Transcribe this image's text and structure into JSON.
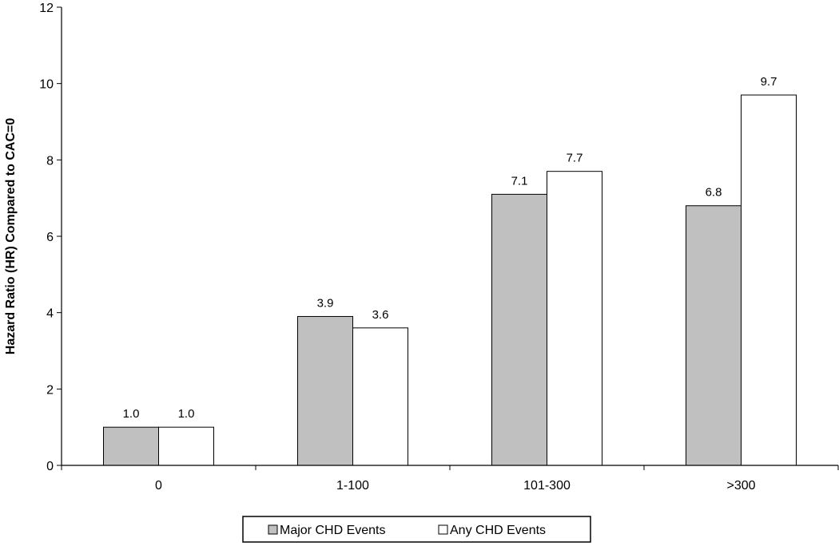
{
  "chart_data": {
    "type": "bar",
    "categories": [
      "0",
      "1-100",
      "101-300",
      ">300"
    ],
    "series": [
      {
        "name": "Major CHD Events",
        "values": [
          1.0,
          3.9,
          7.1,
          6.8
        ],
        "labels": [
          "1.0",
          "3.9",
          "7.1",
          "6.8"
        ],
        "color": "#c0c0c0"
      },
      {
        "name": "Any CHD Events",
        "values": [
          1.0,
          3.6,
          7.7,
          9.7
        ],
        "labels": [
          "1.0",
          "3.6",
          "7.7",
          "9.7"
        ],
        "color": "#ffffff"
      }
    ],
    "ylabel": "Hazard Ratio (HR) Compared to CAC=0",
    "xlabel": "",
    "ylim": [
      0,
      12
    ],
    "yticks": [
      0,
      2,
      4,
      6,
      8,
      10,
      12
    ],
    "ytick_labels": [
      "0",
      "2",
      "4",
      "6",
      "8",
      "10",
      "12"
    ],
    "grid": false,
    "legend_position": "bottom"
  }
}
